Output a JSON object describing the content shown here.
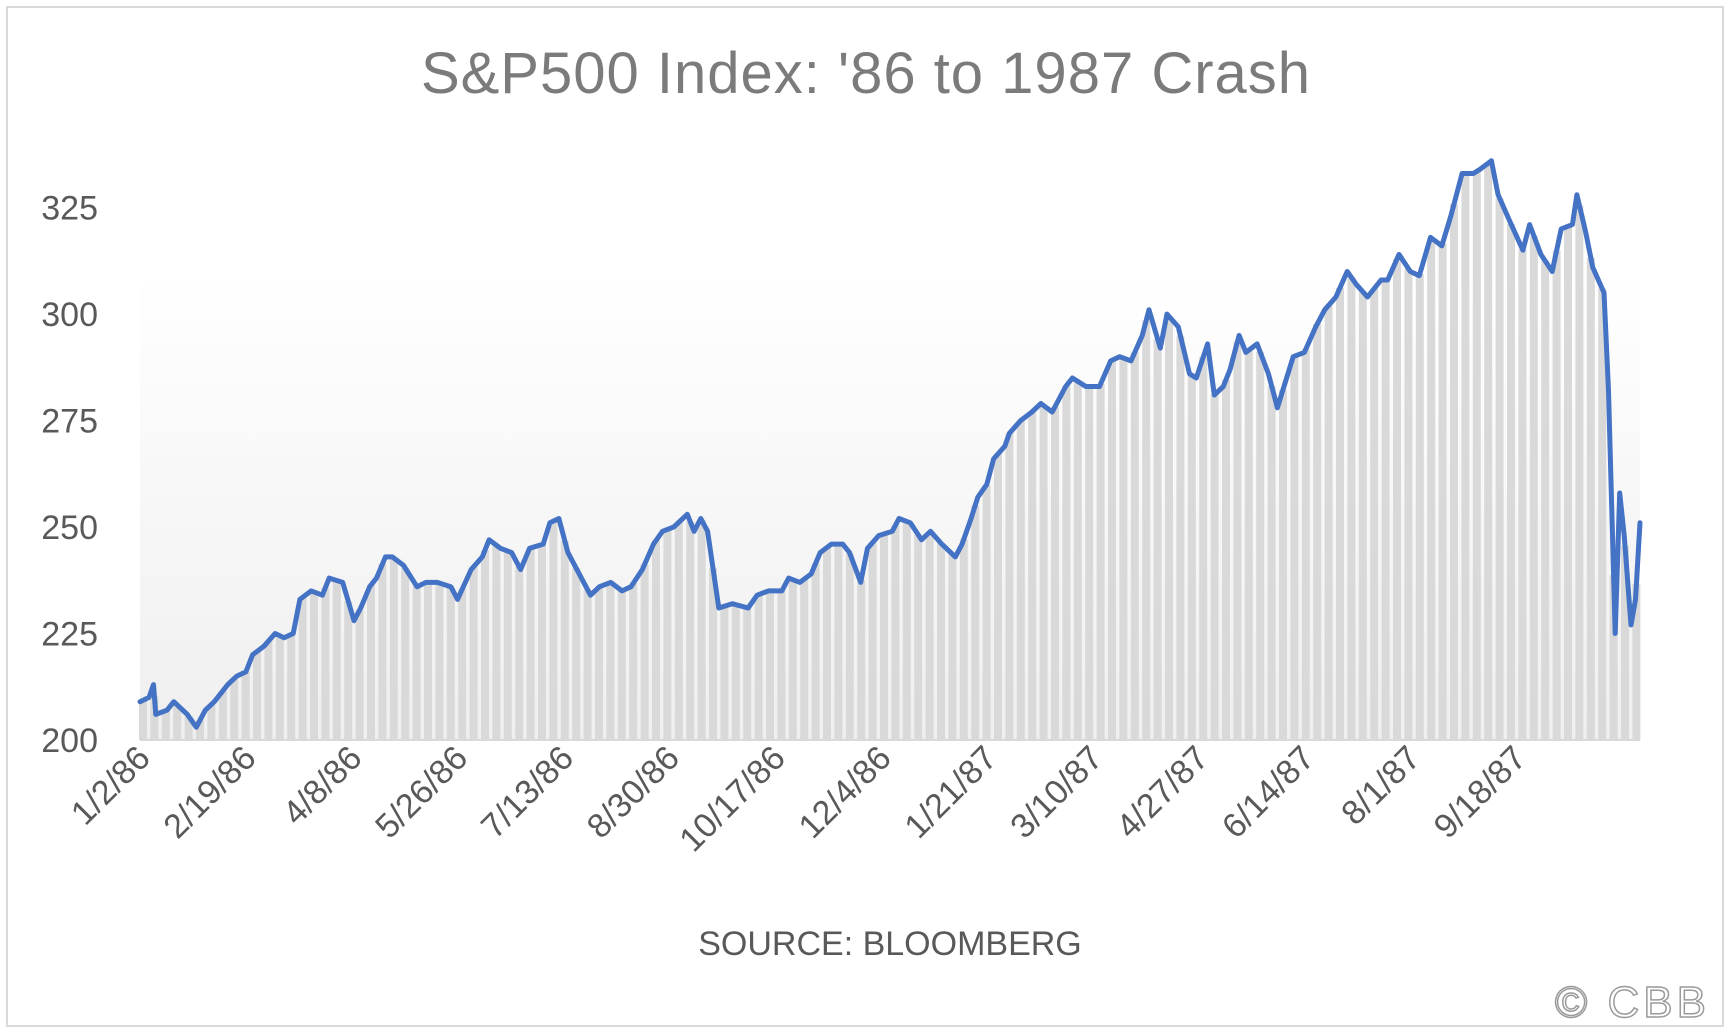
{
  "chart_data": {
    "type": "line",
    "title": "S&P500 Index: '86 to 1987 Crash",
    "source": "SOURCE: BLOOMBERG",
    "watermark": "© CBB",
    "ylim": [
      200,
      335
    ],
    "yticks": [
      200,
      225,
      250,
      275,
      300,
      325
    ],
    "xtick_labels": [
      "1/2/86",
      "2/19/86",
      "4/8/86",
      "5/26/86",
      "7/13/86",
      "8/30/86",
      "10/17/86",
      "12/4/86",
      "1/21/87",
      "3/10/87",
      "4/27/87",
      "6/14/87",
      "8/1/87",
      "9/18/87"
    ],
    "x_start": "1986-01-02",
    "x_end": "1987-10-30",
    "grid": false,
    "legend": "none",
    "colors": {
      "line": "#4472c4",
      "area": "#d9d9d9",
      "text": "#595959",
      "title": "#7b7b7b"
    },
    "series": [
      {
        "values": [
          [
            "1986-01-02",
            209
          ],
          [
            "1986-01-06",
            210
          ],
          [
            "1986-01-08",
            213
          ],
          [
            "1986-01-09",
            206
          ],
          [
            "1986-01-14",
            207
          ],
          [
            "1986-01-17",
            209
          ],
          [
            "1986-01-21",
            207
          ],
          [
            "1986-01-23",
            206
          ],
          [
            "1986-01-27",
            203
          ],
          [
            "1986-01-31",
            207
          ],
          [
            "1986-02-04",
            209
          ],
          [
            "1986-02-10",
            213
          ],
          [
            "1986-02-14",
            215
          ],
          [
            "1986-02-18",
            216
          ],
          [
            "1986-02-21",
            220
          ],
          [
            "1986-02-26",
            222
          ],
          [
            "1986-03-03",
            225
          ],
          [
            "1986-03-07",
            224
          ],
          [
            "1986-03-11",
            225
          ],
          [
            "1986-03-14",
            233
          ],
          [
            "1986-03-19",
            235
          ],
          [
            "1986-03-24",
            234
          ],
          [
            "1986-03-27",
            238
          ],
          [
            "1986-04-02",
            237
          ],
          [
            "1986-04-07",
            228
          ],
          [
            "1986-04-10",
            231
          ],
          [
            "1986-04-14",
            236
          ],
          [
            "1986-04-17",
            238
          ],
          [
            "1986-04-21",
            243
          ],
          [
            "1986-04-24",
            243
          ],
          [
            "1986-04-29",
            241
          ],
          [
            "1986-05-05",
            236
          ],
          [
            "1986-05-09",
            237
          ],
          [
            "1986-05-14",
            237
          ],
          [
            "1986-05-20",
            236
          ],
          [
            "1986-05-23",
            233
          ],
          [
            "1986-05-29",
            240
          ],
          [
            "1986-06-03",
            243
          ],
          [
            "1986-06-06",
            247
          ],
          [
            "1986-06-11",
            245
          ],
          [
            "1986-06-16",
            244
          ],
          [
            "1986-06-20",
            240
          ],
          [
            "1986-06-24",
            245
          ],
          [
            "1986-06-30",
            246
          ],
          [
            "1986-07-03",
            251
          ],
          [
            "1986-07-07",
            252
          ],
          [
            "1986-07-11",
            244
          ],
          [
            "1986-07-15",
            240
          ],
          [
            "1986-07-21",
            234
          ],
          [
            "1986-07-25",
            236
          ],
          [
            "1986-07-30",
            237
          ],
          [
            "1986-08-04",
            235
          ],
          [
            "1986-08-08",
            236
          ],
          [
            "1986-08-13",
            240
          ],
          [
            "1986-08-18",
            246
          ],
          [
            "1986-08-22",
            249
          ],
          [
            "1986-08-27",
            250
          ],
          [
            "1986-09-02",
            253
          ],
          [
            "1986-09-05",
            249
          ],
          [
            "1986-09-08",
            252
          ],
          [
            "1986-09-11",
            249
          ],
          [
            "1986-09-16",
            231
          ],
          [
            "1986-09-22",
            232
          ],
          [
            "1986-09-29",
            231
          ],
          [
            "1986-10-03",
            234
          ],
          [
            "1986-10-08",
            235
          ],
          [
            "1986-10-14",
            235
          ],
          [
            "1986-10-17",
            238
          ],
          [
            "1986-10-22",
            237
          ],
          [
            "1986-10-27",
            239
          ],
          [
            "1986-10-31",
            244
          ],
          [
            "1986-11-05",
            246
          ],
          [
            "1986-11-10",
            246
          ],
          [
            "1986-11-13",
            244
          ],
          [
            "1986-11-18",
            237
          ],
          [
            "1986-11-21",
            245
          ],
          [
            "1986-11-26",
            248
          ],
          [
            "1986-12-02",
            249
          ],
          [
            "1986-12-05",
            252
          ],
          [
            "1986-12-10",
            251
          ],
          [
            "1986-12-15",
            247
          ],
          [
            "1986-12-19",
            249
          ],
          [
            "1986-12-24",
            246
          ],
          [
            "1986-12-30",
            243
          ],
          [
            "1987-01-02",
            246
          ],
          [
            "1987-01-06",
            252
          ],
          [
            "1987-01-09",
            257
          ],
          [
            "1987-01-13",
            260
          ],
          [
            "1987-01-16",
            266
          ],
          [
            "1987-01-21",
            269
          ],
          [
            "1987-01-23",
            272
          ],
          [
            "1987-01-28",
            275
          ],
          [
            "1987-02-02",
            277
          ],
          [
            "1987-02-06",
            279
          ],
          [
            "1987-02-11",
            277
          ],
          [
            "1987-02-17",
            283
          ],
          [
            "1987-02-20",
            285
          ],
          [
            "1987-02-26",
            283
          ],
          [
            "1987-03-04",
            283
          ],
          [
            "1987-03-09",
            289
          ],
          [
            "1987-03-13",
            290
          ],
          [
            "1987-03-18",
            289
          ],
          [
            "1987-03-23",
            295
          ],
          [
            "1987-03-26",
            301
          ],
          [
            "1987-03-31",
            292
          ],
          [
            "1987-04-03",
            300
          ],
          [
            "1987-04-08",
            297
          ],
          [
            "1987-04-13",
            286
          ],
          [
            "1987-04-16",
            285
          ],
          [
            "1987-04-21",
            293
          ],
          [
            "1987-04-24",
            281
          ],
          [
            "1987-04-28",
            283
          ],
          [
            "1987-05-01",
            287
          ],
          [
            "1987-05-05",
            295
          ],
          [
            "1987-05-08",
            291
          ],
          [
            "1987-05-13",
            293
          ],
          [
            "1987-05-18",
            286
          ],
          [
            "1987-05-22",
            278
          ],
          [
            "1987-05-29",
            290
          ],
          [
            "1987-06-03",
            291
          ],
          [
            "1987-06-08",
            297
          ],
          [
            "1987-06-12",
            301
          ],
          [
            "1987-06-17",
            304
          ],
          [
            "1987-06-22",
            310
          ],
          [
            "1987-06-26",
            307
          ],
          [
            "1987-07-01",
            304
          ],
          [
            "1987-07-07",
            308
          ],
          [
            "1987-07-10",
            308
          ],
          [
            "1987-07-15",
            314
          ],
          [
            "1987-07-20",
            310
          ],
          [
            "1987-07-24",
            309
          ],
          [
            "1987-07-29",
            318
          ],
          [
            "1987-08-03",
            316
          ],
          [
            "1987-08-07",
            323
          ],
          [
            "1987-08-12",
            333
          ],
          [
            "1987-08-17",
            333
          ],
          [
            "1987-08-20",
            334
          ],
          [
            "1987-08-25",
            336
          ],
          [
            "1987-08-28",
            328
          ],
          [
            "1987-09-02",
            322
          ],
          [
            "1987-09-08",
            315
          ],
          [
            "1987-09-11",
            321
          ],
          [
            "1987-09-16",
            314
          ],
          [
            "1987-09-21",
            310
          ],
          [
            "1987-09-25",
            320
          ],
          [
            "1987-09-30",
            321
          ],
          [
            "1987-10-02",
            328
          ],
          [
            "1987-10-06",
            319
          ],
          [
            "1987-10-09",
            311
          ],
          [
            "1987-10-14",
            305
          ],
          [
            "1987-10-16",
            282
          ],
          [
            "1987-10-19",
            225
          ],
          [
            "1987-10-21",
            258
          ],
          [
            "1987-10-23",
            248
          ],
          [
            "1987-10-26",
            227
          ],
          [
            "1987-10-28",
            233
          ],
          [
            "1987-10-30",
            251
          ]
        ]
      }
    ]
  }
}
